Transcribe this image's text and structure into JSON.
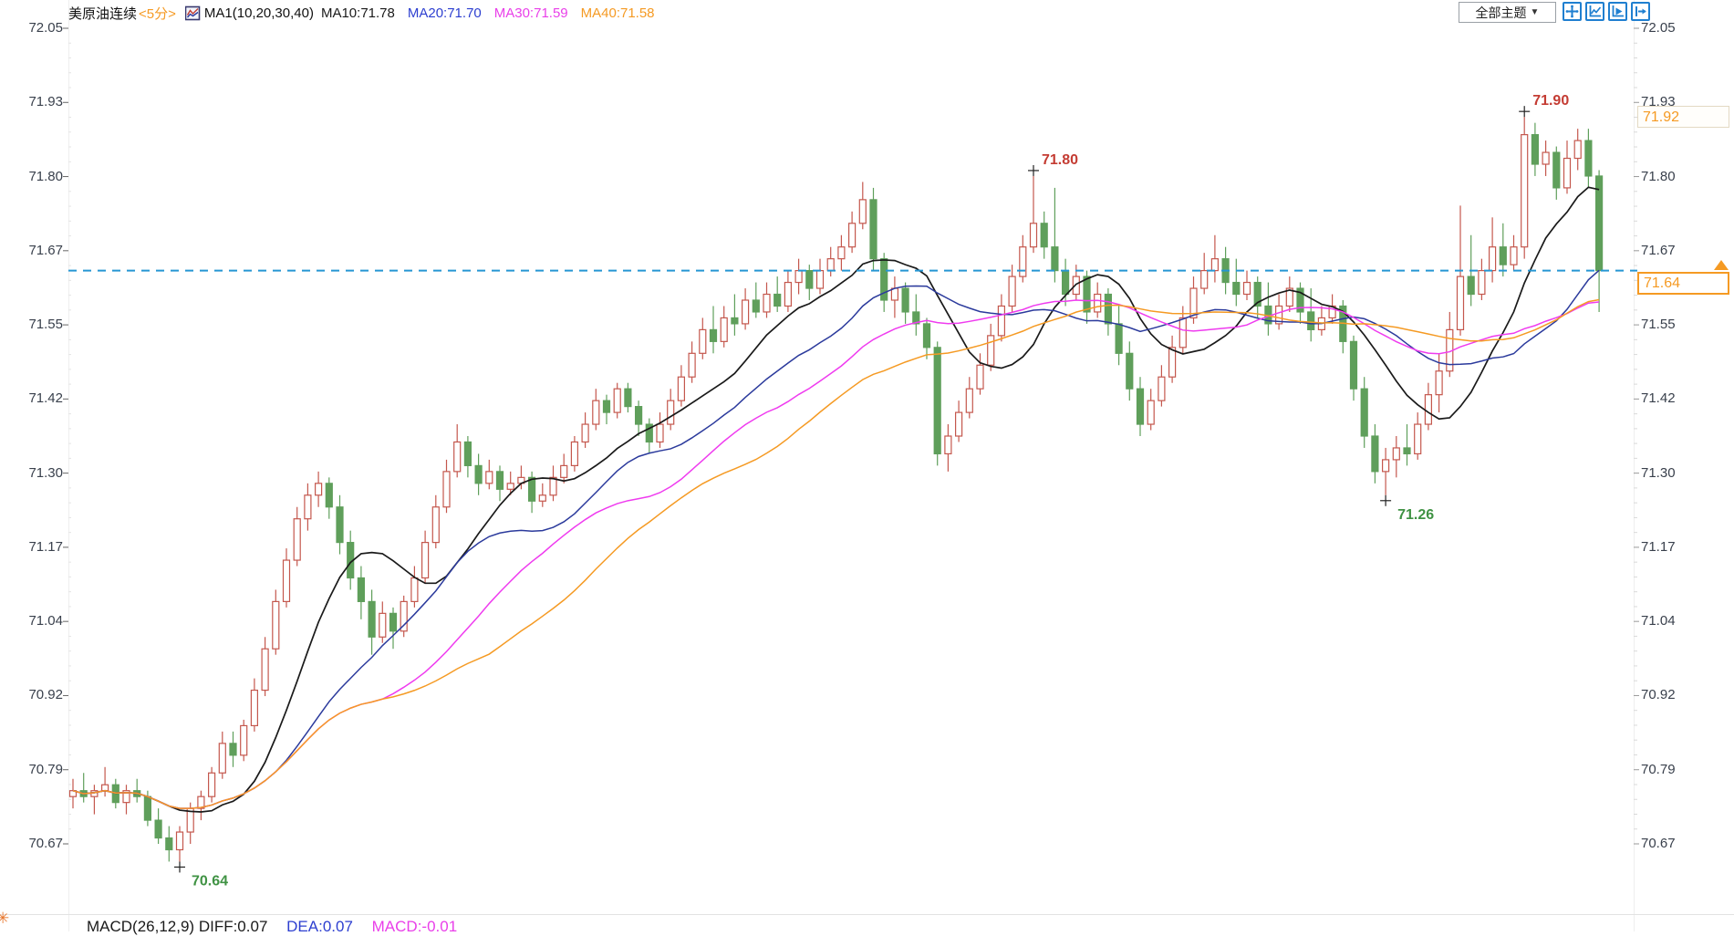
{
  "header": {
    "symbol": "美原油连续",
    "interval": "<5分>",
    "chart_type_icon": "mini-line-chart-icon",
    "ma_group_label": "MA1(10,20,30,40)",
    "ma_values": [
      {
        "label": "MA10:71.78",
        "color": "#1a1a1a"
      },
      {
        "label": "MA20:71.70",
        "color": "#2d3fd0"
      },
      {
        "label": "MA30:71.59",
        "color": "#e93fe9"
      },
      {
        "label": "MA40:71.58",
        "color": "#f59a23"
      }
    ]
  },
  "toolbar": {
    "theme_dropdown_label": "全部主题",
    "dropdown_arrow": "▼",
    "icons": [
      "crosshair-move-icon",
      "chart-scale-icon",
      "chart-play-icon",
      "exit-chart-icon"
    ],
    "icon_color": "#1f7fd0"
  },
  "axis": {
    "labels": [
      "72.05",
      "71.93",
      "71.80",
      "71.67",
      "71.55",
      "71.42",
      "71.30",
      "71.17",
      "71.04",
      "70.92",
      "70.79",
      "70.67"
    ]
  },
  "price_markers": {
    "session_high": {
      "value": "71.92",
      "color": "#f59a23"
    },
    "last_price": {
      "value": "71.64",
      "color": "#f59a23"
    }
  },
  "footer": {
    "macd_left": "MACD(26,12,9) DIFF:0.07",
    "dea": "DEA:0.07",
    "macd": "MACD:-0.01",
    "colors": {
      "left": "#1a1a1a",
      "dea": "#2d3fd0",
      "macd": "#e93fe9"
    }
  },
  "chart_data": {
    "type": "candlestick",
    "title": "美原油连续 5分钟K线",
    "ylim": [
      70.67,
      72.05
    ],
    "y_ticks": [
      72.05,
      71.93,
      71.8,
      71.67,
      71.55,
      71.42,
      71.3,
      71.17,
      71.04,
      70.92,
      70.79,
      70.67
    ],
    "last_price": 71.64,
    "session_high_marker": 71.92,
    "ma_periods": [
      10,
      20,
      30,
      40
    ],
    "ma_colors": [
      "#1a1a1a",
      "#2b3a9c",
      "#ef3bef",
      "#f59a23"
    ],
    "ma_last_values": {
      "ma10": 71.78,
      "ma20": 71.7,
      "ma30": 71.59,
      "ma40": 71.58
    },
    "up_color": "#c4574d",
    "down_color": "#5f9f5b",
    "last_price_line_color": "#2696d3",
    "annotations": [
      {
        "text": "70.64",
        "price": 70.64,
        "index": 10,
        "type": "low",
        "color": "#3f9243"
      },
      {
        "text": "71.80",
        "price": 71.8,
        "index": 90,
        "type": "high",
        "color": "#c43c33"
      },
      {
        "text": "71.26",
        "price": 71.26,
        "index": 123,
        "type": "low",
        "color": "#3f9243"
      },
      {
        "text": "71.90",
        "price": 71.9,
        "index": 136,
        "type": "high",
        "color": "#c43c33"
      }
    ],
    "candles": [
      [
        70.75,
        70.78,
        70.73,
        70.76
      ],
      [
        70.76,
        70.79,
        70.74,
        70.75
      ],
      [
        70.75,
        70.77,
        70.72,
        70.76
      ],
      [
        70.76,
        70.8,
        70.75,
        70.77
      ],
      [
        70.77,
        70.78,
        70.73,
        70.74
      ],
      [
        70.74,
        70.77,
        70.72,
        70.76
      ],
      [
        70.76,
        70.78,
        70.74,
        70.75
      ],
      [
        70.75,
        70.76,
        70.7,
        70.71
      ],
      [
        70.71,
        70.73,
        70.67,
        70.68
      ],
      [
        70.68,
        70.7,
        70.64,
        70.66
      ],
      [
        70.66,
        70.7,
        70.64,
        70.69
      ],
      [
        70.69,
        70.74,
        70.67,
        70.73
      ],
      [
        70.73,
        70.76,
        70.71,
        70.75
      ],
      [
        70.75,
        70.8,
        70.74,
        70.79
      ],
      [
        70.79,
        70.86,
        70.78,
        70.84
      ],
      [
        70.84,
        70.86,
        70.8,
        70.82
      ],
      [
        70.82,
        70.88,
        70.81,
        70.87
      ],
      [
        70.87,
        70.95,
        70.86,
        70.93
      ],
      [
        70.93,
        71.02,
        70.92,
        71.0
      ],
      [
        71.0,
        71.1,
        70.99,
        71.08
      ],
      [
        71.08,
        71.17,
        71.07,
        71.15
      ],
      [
        71.15,
        71.24,
        71.14,
        71.22
      ],
      [
        71.22,
        71.28,
        71.2,
        71.26
      ],
      [
        71.26,
        71.3,
        71.24,
        71.28
      ],
      [
        71.28,
        71.29,
        71.22,
        71.24
      ],
      [
        71.24,
        71.26,
        71.16,
        71.18
      ],
      [
        71.18,
        71.2,
        71.1,
        71.12
      ],
      [
        71.12,
        71.14,
        71.05,
        71.08
      ],
      [
        71.08,
        71.1,
        70.99,
        71.02
      ],
      [
        71.02,
        71.08,
        71.01,
        71.06
      ],
      [
        71.06,
        71.07,
        71.0,
        71.03
      ],
      [
        71.03,
        71.09,
        71.02,
        71.08
      ],
      [
        71.08,
        71.14,
        71.07,
        71.12
      ],
      [
        71.12,
        71.2,
        71.11,
        71.18
      ],
      [
        71.18,
        71.26,
        71.17,
        71.24
      ],
      [
        71.24,
        71.32,
        71.23,
        71.3
      ],
      [
        71.3,
        71.38,
        71.29,
        71.35
      ],
      [
        71.35,
        71.36,
        71.29,
        71.31
      ],
      [
        71.31,
        71.33,
        71.26,
        71.28
      ],
      [
        71.28,
        71.32,
        71.27,
        71.3
      ],
      [
        71.3,
        71.31,
        71.25,
        71.27
      ],
      [
        71.27,
        71.3,
        71.26,
        71.28
      ],
      [
        71.28,
        71.31,
        71.27,
        71.29
      ],
      [
        71.29,
        71.3,
        71.23,
        71.25
      ],
      [
        71.25,
        71.28,
        71.24,
        71.26
      ],
      [
        71.26,
        71.31,
        71.25,
        71.29
      ],
      [
        71.29,
        71.33,
        71.28,
        71.31
      ],
      [
        71.31,
        71.36,
        71.3,
        71.35
      ],
      [
        71.35,
        71.4,
        71.34,
        71.38
      ],
      [
        71.38,
        71.44,
        71.37,
        71.42
      ],
      [
        71.42,
        71.43,
        71.38,
        71.4
      ],
      [
        71.4,
        71.45,
        71.39,
        71.44
      ],
      [
        71.44,
        71.45,
        71.4,
        71.41
      ],
      [
        71.41,
        71.42,
        71.36,
        71.38
      ],
      [
        71.38,
        71.39,
        71.33,
        71.35
      ],
      [
        71.35,
        71.4,
        71.34,
        71.38
      ],
      [
        71.38,
        71.44,
        71.37,
        71.42
      ],
      [
        71.42,
        71.48,
        71.41,
        71.46
      ],
      [
        71.46,
        71.52,
        71.45,
        71.5
      ],
      [
        71.5,
        71.56,
        71.49,
        71.54
      ],
      [
        71.54,
        71.58,
        71.5,
        71.52
      ],
      [
        71.52,
        71.58,
        71.51,
        71.56
      ],
      [
        71.56,
        71.6,
        71.53,
        71.55
      ],
      [
        71.55,
        71.61,
        71.54,
        71.59
      ],
      [
        71.59,
        71.62,
        71.56,
        71.57
      ],
      [
        71.57,
        71.62,
        71.56,
        71.6
      ],
      [
        71.6,
        71.63,
        71.57,
        71.58
      ],
      [
        71.58,
        71.64,
        71.57,
        71.62
      ],
      [
        71.62,
        71.66,
        71.6,
        71.64
      ],
      [
        71.64,
        71.65,
        71.59,
        71.61
      ],
      [
        71.61,
        71.66,
        71.6,
        71.64
      ],
      [
        71.64,
        71.68,
        71.63,
        71.66
      ],
      [
        71.66,
        71.7,
        71.64,
        71.68
      ],
      [
        71.68,
        71.74,
        71.67,
        71.72
      ],
      [
        71.72,
        71.79,
        71.71,
        71.76
      ],
      [
        71.76,
        71.78,
        71.64,
        71.66
      ],
      [
        71.66,
        71.67,
        71.57,
        71.59
      ],
      [
        71.59,
        71.63,
        71.56,
        71.61
      ],
      [
        71.61,
        71.62,
        71.55,
        71.57
      ],
      [
        71.57,
        71.6,
        71.53,
        71.55
      ],
      [
        71.55,
        71.56,
        71.49,
        71.51
      ],
      [
        71.51,
        71.52,
        71.31,
        71.33
      ],
      [
        71.33,
        71.38,
        71.3,
        71.36
      ],
      [
        71.36,
        71.42,
        71.35,
        71.4
      ],
      [
        71.4,
        71.46,
        71.39,
        71.44
      ],
      [
        71.44,
        71.5,
        71.43,
        71.48
      ],
      [
        71.48,
        71.55,
        71.47,
        71.53
      ],
      [
        71.53,
        71.6,
        71.52,
        71.58
      ],
      [
        71.58,
        71.65,
        71.57,
        71.63
      ],
      [
        71.63,
        71.7,
        71.62,
        71.68
      ],
      [
        71.68,
        71.8,
        71.67,
        71.72
      ],
      [
        71.72,
        71.74,
        71.66,
        71.68
      ],
      [
        71.68,
        71.78,
        71.62,
        71.64
      ],
      [
        71.64,
        71.66,
        71.58,
        71.6
      ],
      [
        71.6,
        71.65,
        71.59,
        71.63
      ],
      [
        71.63,
        71.64,
        71.55,
        71.57
      ],
      [
        71.57,
        71.62,
        71.56,
        71.6
      ],
      [
        71.6,
        71.61,
        71.53,
        71.55
      ],
      [
        71.55,
        71.58,
        71.48,
        71.5
      ],
      [
        71.5,
        71.52,
        71.42,
        71.44
      ],
      [
        71.44,
        71.46,
        71.36,
        71.38
      ],
      [
        71.38,
        71.44,
        71.37,
        71.42
      ],
      [
        71.42,
        71.48,
        71.41,
        71.46
      ],
      [
        71.46,
        71.53,
        71.45,
        71.51
      ],
      [
        71.51,
        71.58,
        71.5,
        71.56
      ],
      [
        71.56,
        71.63,
        71.55,
        71.61
      ],
      [
        71.61,
        71.67,
        71.6,
        71.64
      ],
      [
        71.64,
        71.7,
        71.62,
        71.66
      ],
      [
        71.66,
        71.68,
        71.6,
        71.62
      ],
      [
        71.62,
        71.66,
        71.58,
        71.6
      ],
      [
        71.6,
        71.64,
        71.59,
        71.62
      ],
      [
        71.62,
        71.63,
        71.56,
        71.58
      ],
      [
        71.58,
        71.62,
        71.53,
        71.55
      ],
      [
        71.55,
        71.6,
        71.54,
        71.58
      ],
      [
        71.58,
        71.63,
        71.57,
        71.61
      ],
      [
        71.61,
        71.62,
        71.55,
        71.57
      ],
      [
        71.57,
        71.61,
        71.52,
        71.54
      ],
      [
        71.54,
        71.58,
        71.53,
        71.56
      ],
      [
        71.56,
        71.6,
        71.55,
        71.58
      ],
      [
        71.58,
        71.59,
        71.5,
        71.52
      ],
      [
        71.52,
        71.53,
        71.42,
        71.44
      ],
      [
        71.44,
        71.46,
        71.34,
        71.36
      ],
      [
        71.36,
        71.38,
        71.28,
        71.3
      ],
      [
        71.3,
        71.34,
        71.26,
        71.32
      ],
      [
        71.32,
        71.36,
        71.29,
        71.34
      ],
      [
        71.34,
        71.38,
        71.31,
        71.33
      ],
      [
        71.33,
        71.4,
        71.32,
        71.38
      ],
      [
        71.38,
        71.45,
        71.37,
        71.43
      ],
      [
        71.43,
        71.5,
        71.4,
        71.47
      ],
      [
        71.47,
        71.57,
        71.46,
        71.54
      ],
      [
        71.54,
        71.75,
        71.53,
        71.63
      ],
      [
        71.63,
        71.7,
        71.58,
        71.6
      ],
      [
        71.6,
        71.66,
        71.59,
        71.64
      ],
      [
        71.64,
        71.73,
        71.62,
        71.68
      ],
      [
        71.68,
        71.72,
        71.63,
        71.65
      ],
      [
        71.65,
        71.7,
        71.64,
        71.68
      ],
      [
        71.68,
        71.9,
        71.66,
        71.87
      ],
      [
        71.87,
        71.89,
        71.8,
        71.82
      ],
      [
        71.82,
        71.86,
        71.8,
        71.84
      ],
      [
        71.84,
        71.85,
        71.76,
        71.78
      ],
      [
        71.78,
        71.86,
        71.77,
        71.83
      ],
      [
        71.83,
        71.88,
        71.81,
        71.86
      ],
      [
        71.86,
        71.88,
        71.78,
        71.8
      ],
      [
        71.8,
        71.81,
        71.57,
        71.64
      ]
    ]
  }
}
